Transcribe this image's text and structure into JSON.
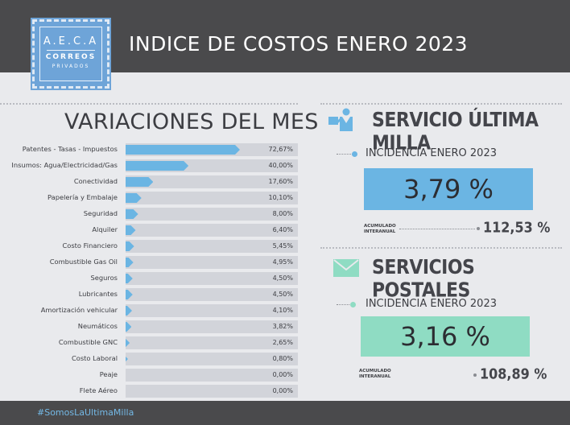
{
  "header": {
    "title": "INDICE DE COSTOS ENERO 2023"
  },
  "logo": {
    "line1": "A.E.C.A",
    "line2": "CORREOS",
    "line3": "PRIVADOS"
  },
  "left": {
    "title": "VARIACIONES DEL MES"
  },
  "chart_data": {
    "type": "bar",
    "orientation": "horizontal",
    "title": "VARIACIONES DEL MES",
    "categories": [
      "Patentes - Tasas - Impuestos",
      "Insumos: Agua/Electricidad/Gas",
      "Conectividad",
      "Papelería y Embalaje",
      "Seguridad",
      "Alquiler",
      "Costo Financiero",
      "Combustible Gas Oil",
      "Seguros",
      "Lubricantes",
      "Amortización vehicular",
      "Neumáticos",
      "Combustible GNC",
      "Costo Laboral",
      "Peaje",
      "Flete Aéreo"
    ],
    "values": [
      72.67,
      40.0,
      17.6,
      10.1,
      8.0,
      6.4,
      5.45,
      4.95,
      4.5,
      4.5,
      4.1,
      3.82,
      2.65,
      0.8,
      0.0,
      0.0
    ],
    "value_labels": [
      "72,67%",
      "40,00%",
      "17,60%",
      "10,10%",
      "8,00%",
      "6,40%",
      "5,45%",
      "4,95%",
      "4,50%",
      "4,50%",
      "4,10%",
      "3,82%",
      "2,65%",
      "0,80%",
      "0,00%",
      "0,00%"
    ],
    "bar_color": "#6bb5e3",
    "track_color": "#d2d4da"
  },
  "ultima_milla": {
    "title": "SERVICIO ÚLTIMA MILLA",
    "incidencia_label": "INCIDENCIA ENERO 2023",
    "incidencia_value": "3,79 %",
    "acumulado_label_1": "ACUMULADO",
    "acumulado_label_2": "INTERANUAL",
    "acumulado_value": "112,53 %",
    "color": "#6bb5e3",
    "icon": "delivery-person-icon"
  },
  "postales": {
    "title": "SERVICIOS POSTALES",
    "incidencia_label": "INCIDENCIA ENERO 2023",
    "incidencia_value": "3,16 %",
    "acumulado_label_1": "ACUMULADO",
    "acumulado_label_2": "INTERANUAL",
    "acumulado_value": "108,89 %",
    "color": "#8fdcc3",
    "icon": "envelope-icon"
  },
  "footer": {
    "hashtag": "#SomosLaUltimaMilla"
  }
}
